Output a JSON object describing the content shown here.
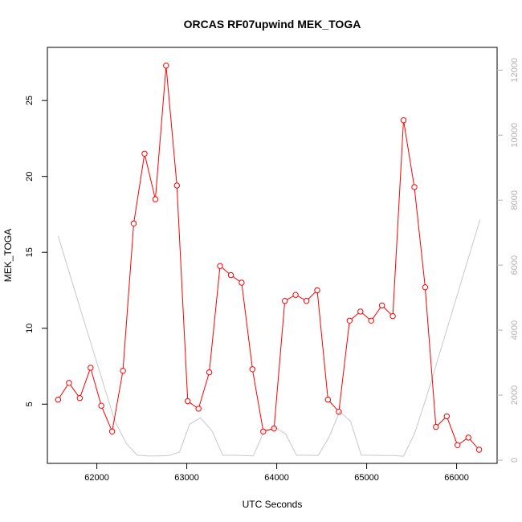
{
  "chart_data": {
    "type": "line",
    "title": "ORCAS RF07upwind MEK_TOGA",
    "xlabel": "UTC Seconds",
    "ylabel": "MEK_TOGA",
    "xlim": [
      61450,
      66450
    ],
    "ylim": [
      1.1,
      28.5
    ],
    "y2lim": [
      -100,
      12700
    ],
    "x_ticks": [
      62000,
      63000,
      64000,
      65000,
      66000
    ],
    "y_ticks": [
      5,
      10,
      15,
      20,
      25
    ],
    "y2_ticks": [
      0,
      2000,
      4000,
      6000,
      8000,
      10000,
      12000
    ],
    "grid": false,
    "series": [
      {
        "color": "#ff0000",
        "marker": "open-circle",
        "axis": "left",
        "x": [
          61570,
          61690,
          61810,
          61930,
          62050,
          62170,
          62290,
          62410,
          62530,
          62650,
          62770,
          62890,
          63010,
          63130,
          63250,
          63370,
          63490,
          63610,
          63730,
          63850,
          63970,
          64090,
          64210,
          64330,
          64450,
          64570,
          64690,
          64810,
          64930,
          65050,
          65170,
          65290,
          65410,
          65530,
          65650,
          65770,
          65890,
          66010,
          66130,
          66250
        ],
        "values": [
          5.3,
          6.4,
          5.4,
          7.4,
          4.9,
          3.2,
          7.2,
          16.9,
          21.5,
          18.5,
          27.3,
          19.4,
          5.2,
          4.7,
          7.1,
          14.1,
          13.5,
          13.0,
          7.3,
          3.2,
          3.4,
          11.8,
          12.2,
          11.8,
          12.5,
          5.3,
          4.5,
          10.5,
          11.1,
          10.5,
          11.5,
          10.8,
          23.7,
          19.3,
          12.7,
          3.5,
          4.2,
          2.3,
          2.8,
          2.0
        ]
      },
      {
        "color": "#c8c8c8",
        "marker": "none",
        "axis": "right",
        "x": [
          61570,
          61800,
          62000,
          62200,
          62330,
          62450,
          62560,
          62680,
          62800,
          62920,
          63030,
          63150,
          63280,
          63400,
          63500,
          63620,
          63740,
          63860,
          63990,
          64100,
          64220,
          64340,
          64460,
          64580,
          64700,
          64820,
          64940,
          65060,
          65180,
          65300,
          65410,
          65530,
          65660,
          65780,
          65900,
          66020,
          66140,
          66260
        ],
        "values": [
          6900,
          4800,
          3000,
          1200,
          500,
          150,
          130,
          130,
          140,
          250,
          1100,
          1300,
          900,
          150,
          150,
          140,
          130,
          900,
          1000,
          800,
          150,
          150,
          140,
          700,
          1500,
          1200,
          150,
          150,
          140,
          140,
          120,
          800,
          1900,
          3000,
          4100,
          5200,
          6300,
          7400
        ]
      }
    ]
  }
}
